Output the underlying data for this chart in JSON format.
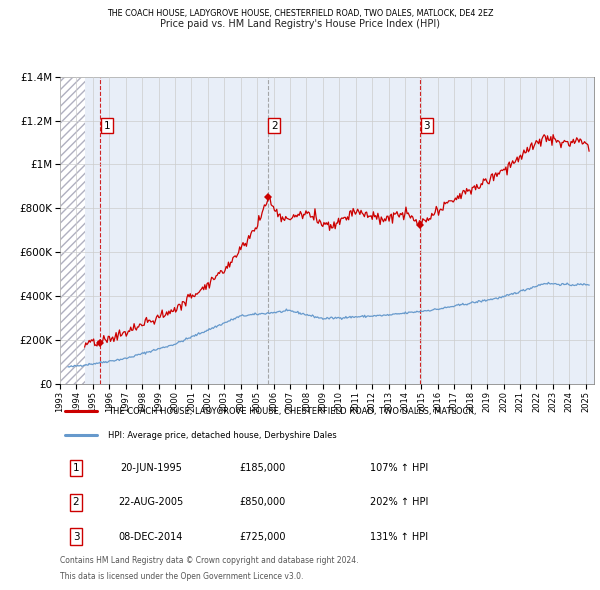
{
  "title_line1": "THE COACH HOUSE, LADYGROVE HOUSE, CHESTERFIELD ROAD, TWO DALES, MATLOCK, DE4 2EZ",
  "title_line2": "Price paid vs. HM Land Registry's House Price Index (HPI)",
  "sale_prices": [
    185000,
    850000,
    725000
  ],
  "sale_labels": [
    "1",
    "2",
    "3"
  ],
  "sale_year_nums": [
    1995.46,
    2005.64,
    2014.92
  ],
  "sale_pct": [
    "107% ↑ HPI",
    "202% ↑ HPI",
    "131% ↑ HPI"
  ],
  "sale_date_labels": [
    "20-JUN-1995",
    "22-AUG-2005",
    "08-DEC-2014"
  ],
  "sale_price_labels": [
    "£185,000",
    "£850,000",
    "£725,000"
  ],
  "hpi_line_color": "#6699cc",
  "price_line_color": "#cc0000",
  "sale_marker_color": "#cc0000",
  "vline_color": "#cc0000",
  "grid_color": "#cccccc",
  "background_color": "#ffffff",
  "plot_bg_color": "#e8eef8",
  "hatch_color": "#c8c8d8",
  "ylim": [
    0,
    1400000
  ],
  "yticks": [
    0,
    200000,
    400000,
    600000,
    800000,
    1000000,
    1200000,
    1400000
  ],
  "ytick_labels": [
    "£0",
    "£200K",
    "£400K",
    "£600K",
    "£800K",
    "£1M",
    "£1.2M",
    "£1.4M"
  ],
  "xlim_start": 1993.0,
  "xlim_end": 2025.5,
  "hatch_end": 1994.5,
  "legend_property_label": "THE COACH HOUSE, LADYGROVE HOUSE, CHESTERFIELD ROAD, TWO DALES, MATLOCK,",
  "legend_hpi_label": "HPI: Average price, detached house, Derbyshire Dales",
  "footer_line1": "Contains HM Land Registry data © Crown copyright and database right 2024.",
  "footer_line2": "This data is licensed under the Open Government Licence v3.0."
}
